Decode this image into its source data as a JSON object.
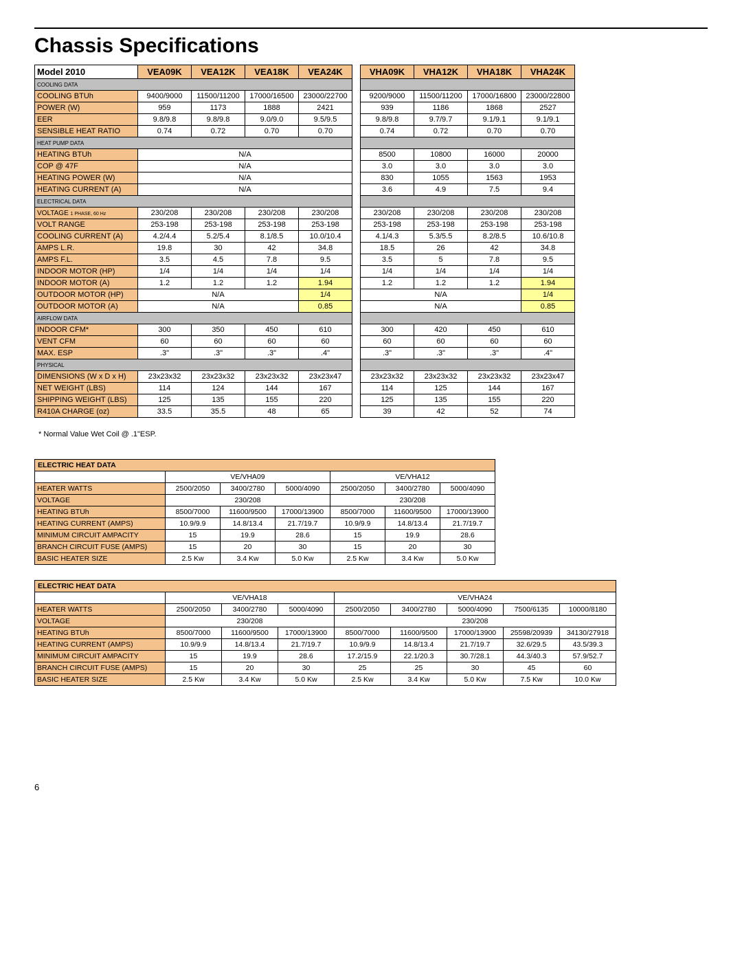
{
  "title": "Chassis Specifications",
  "pageNumber": "6",
  "footnote": "* Normal Value Wet Coil @ .1\"ESP.",
  "mainTable": {
    "modelLabel": "Model 2010",
    "cols": [
      "VEA09K",
      "VEA12K",
      "VEA18K",
      "VEA24K",
      "VHA09K",
      "VHA12K",
      "VHA18K",
      "VHA24K"
    ],
    "sections": [
      {
        "title": "COOLING DATA",
        "rows": [
          {
            "label": "COOLING BTUh",
            "v": [
              "9400/9000",
              "11500/11200",
              "17000/16500",
              "23000/22700",
              "9200/9000",
              "11500/11200",
              "17000/16800",
              "23000/22800"
            ]
          },
          {
            "label": "POWER (W)",
            "v": [
              "959",
              "1173",
              "1888",
              "2421",
              "939",
              "1186",
              "1868",
              "2527"
            ]
          },
          {
            "label": "EER",
            "v": [
              "9.8/9.8",
              "9.8/9.8",
              "9.0/9.0",
              "9.5/9.5",
              "9.8/9.8",
              "9.7/9.7",
              "9.1/9.1",
              "9.1/9.1"
            ]
          },
          {
            "label": "SENSIBLE HEAT RATIO",
            "v": [
              "0.74",
              "0.72",
              "0.70",
              "0.70",
              "0.74",
              "0.72",
              "0.70",
              "0.70"
            ]
          }
        ]
      },
      {
        "title": "HEAT PUMP DATA",
        "rows": [
          {
            "label": "HEATING BTUh",
            "v": [
              {
                "span": 4,
                "val": "N/A"
              },
              "8500",
              "10800",
              "16000",
              "20000"
            ]
          },
          {
            "label": "COP @ 47F",
            "v": [
              {
                "span": 4,
                "val": "N/A"
              },
              "3.0",
              "3.0",
              "3.0",
              "3.0"
            ]
          },
          {
            "label": "HEATING POWER (W)",
            "v": [
              {
                "span": 4,
                "val": "N/A"
              },
              "830",
              "1055",
              "1563",
              "1953"
            ]
          },
          {
            "label": "HEATING CURRENT (A)",
            "v": [
              {
                "span": 4,
                "val": "N/A"
              },
              "3.6",
              "4.9",
              "7.5",
              "9.4"
            ]
          }
        ]
      },
      {
        "title": "ELECTRICAL DATA",
        "rows": [
          {
            "label": "VOLTAGE 1 PHASE, 60 Hz",
            "small": true,
            "v": [
              "230/208",
              "230/208",
              "230/208",
              "230/208",
              "230/208",
              "230/208",
              "230/208",
              "230/208"
            ]
          },
          {
            "label": "VOLT RANGE",
            "v": [
              "253-198",
              "253-198",
              "253-198",
              "253-198",
              "253-198",
              "253-198",
              "253-198",
              "253-198"
            ]
          },
          {
            "label": "COOLING CURRENT (A)",
            "v": [
              "4.2/4.4",
              "5.2/5.4",
              "8.1/8.5",
              "10.0/10.4",
              "4.1/4.3",
              "5.3/5.5",
              "8.2/8.5",
              "10.6/10.8"
            ]
          },
          {
            "label": "AMPS L.R.",
            "v": [
              "19.8",
              "30",
              "42",
              "34.8",
              "18.5",
              "26",
              "42",
              "34.8"
            ]
          },
          {
            "label": "AMPS F.L.",
            "v": [
              "3.5",
              "4.5",
              "7.8",
              "9.5",
              "3.5",
              "5",
              "7.8",
              "9.5"
            ]
          },
          {
            "label": "INDOOR MOTOR (HP)",
            "v": [
              "1/4",
              "1/4",
              "1/4",
              "1/4",
              "1/4",
              "1/4",
              "1/4",
              "1/4"
            ]
          },
          {
            "label": "INDOOR MOTOR (A)",
            "v": [
              "1.2",
              "1.2",
              "1.2",
              {
                "val": "1.94",
                "hl": true
              },
              "1.2",
              "1.2",
              "1.2",
              {
                "val": "1.94",
                "hl": true
              }
            ]
          },
          {
            "label": "OUTDOOR MOTOR (HP)",
            "v": [
              {
                "span": 3,
                "val": "N/A"
              },
              {
                "val": "1/4",
                "hl": true
              },
              {
                "span": 3,
                "val": "N/A"
              },
              {
                "val": "1/4",
                "hl": true
              }
            ]
          },
          {
            "label": "OUTDOOR MOTOR (A)",
            "v": [
              {
                "span": 3,
                "val": "N/A"
              },
              {
                "val": "0.85",
                "hl": true
              },
              {
                "span": 3,
                "val": "N/A"
              },
              {
                "val": "0.85",
                "hl": true
              }
            ]
          }
        ]
      },
      {
        "title": "AIRFLOW DATA",
        "rows": [
          {
            "label": "INDOOR CFM*",
            "v": [
              "300",
              "350",
              "450",
              "610",
              "300",
              "420",
              "450",
              "610"
            ]
          },
          {
            "label": "VENT CFM",
            "v": [
              "60",
              "60",
              "60",
              "60",
              "60",
              "60",
              "60",
              "60"
            ]
          },
          {
            "label": "MAX. ESP",
            "v": [
              ".3\"",
              ".3\"",
              ".3\"",
              ".4\"",
              ".3\"",
              ".3\"",
              ".3\"",
              ".4\""
            ]
          }
        ]
      },
      {
        "title": "PHYSICAL",
        "rows": [
          {
            "label": "DIMENSIONS (W x D x H)",
            "v": [
              "23x23x32",
              "23x23x32",
              "23x23x32",
              "23x23x47",
              "23x23x32",
              "23x23x32",
              "23x23x32",
              "23x23x47"
            ]
          },
          {
            "label": "NET WEIGHT (LBS)",
            "v": [
              "114",
              "124",
              "144",
              "167",
              "114",
              "125",
              "144",
              "167"
            ]
          },
          {
            "label": "SHIPPING WEIGHT (LBS)",
            "v": [
              "125",
              "135",
              "155",
              "220",
              "125",
              "135",
              "155",
              "220"
            ]
          },
          {
            "label": "R410A CHARGE (oz)",
            "v": [
              "33.5",
              "35.5",
              "48",
              "65",
              "39",
              "42",
              "52",
              "74"
            ]
          }
        ]
      }
    ]
  },
  "ehTables": [
    {
      "header": "ELECTRIC HEAT DATA",
      "groups": [
        {
          "label": "VE/VHA09",
          "span": 3
        },
        {
          "label": "VE/VHA12",
          "span": 3
        }
      ],
      "cols": 6,
      "rows": [
        {
          "label": "HEATER WATTS",
          "v": [
            "2500/2050",
            "3400/2780",
            "5000/4090",
            "2500/2050",
            "3400/2780",
            "5000/4090"
          ]
        },
        {
          "label": "VOLTAGE",
          "v": [
            {
              "span": 3,
              "val": "230/208"
            },
            {
              "span": 3,
              "val": "230/208"
            }
          ]
        },
        {
          "label": "HEATING BTUh",
          "v": [
            "8500/7000",
            "11600/9500",
            "17000/13900",
            "8500/7000",
            "11600/9500",
            "17000/13900"
          ]
        },
        {
          "label": "HEATING CURRENT (AMPS)",
          "v": [
            "10.9/9.9",
            "14.8/13.4",
            "21.7/19.7",
            "10.9/9.9",
            "14.8/13.4",
            "21.7/19.7"
          ]
        },
        {
          "label": "MINIMUM CIRCUIT AMPACITY",
          "v": [
            "15",
            "19.9",
            "28.6",
            "15",
            "19.9",
            "28.6"
          ]
        },
        {
          "label": "BRANCH CIRCUIT FUSE (AMPS)",
          "v": [
            "15",
            "20",
            "30",
            "15",
            "20",
            "30"
          ]
        },
        {
          "label": "BASIC HEATER SIZE",
          "v": [
            "2.5 Kw",
            "3.4 Kw",
            "5.0 Kw",
            "2.5 Kw",
            "3.4 Kw",
            "5.0 Kw"
          ]
        }
      ]
    },
    {
      "header": "ELECTRIC HEAT DATA",
      "groups": [
        {
          "label": "VE/VHA18",
          "span": 3
        },
        {
          "label": "VE/VHA24",
          "span": 5
        }
      ],
      "cols": 8,
      "fullWidth": true,
      "rows": [
        {
          "label": "HEATER WATTS",
          "v": [
            "2500/2050",
            "3400/2780",
            "5000/4090",
            "2500/2050",
            "3400/2780",
            "5000/4090",
            "7500/6135",
            "10000/8180"
          ]
        },
        {
          "label": "VOLTAGE",
          "v": [
            {
              "span": 3,
              "val": "230/208"
            },
            {
              "span": 5,
              "val": "230/208"
            }
          ]
        },
        {
          "label": "HEATING BTUh",
          "v": [
            "8500/7000",
            "11600/9500",
            "17000/13900",
            "8500/7000",
            "11600/9500",
            "17000/13900",
            "25598/20939",
            "34130/27918"
          ]
        },
        {
          "label": "HEATING CURRENT (AMPS)",
          "v": [
            "10.9/9.9",
            "14.8/13.4",
            "21.7/19.7",
            "10.9/9.9",
            "14.8/13.4",
            "21.7/19.7",
            "32.6/29.5",
            "43.5/39.3"
          ]
        },
        {
          "label": "MINIMUM CIRCUIT AMPACITY",
          "v": [
            "15",
            "19.9",
            "28.6",
            "17.2/15.9",
            "22.1/20.3",
            "30.7/28.1",
            "44.3/40.3",
            "57.9/52.7"
          ]
        },
        {
          "label": "BRANCH CIRCUIT FUSE (AMPS)",
          "v": [
            "15",
            "20",
            "30",
            "25",
            "25",
            "30",
            "45",
            "60"
          ]
        },
        {
          "label": "BASIC HEATER SIZE",
          "v": [
            "2.5 Kw",
            "3.4 Kw",
            "5.0 Kw",
            "2.5 Kw",
            "3.4 Kw",
            "5.0 Kw",
            "7.5 Kw",
            "10.0 Kw"
          ]
        }
      ]
    }
  ]
}
